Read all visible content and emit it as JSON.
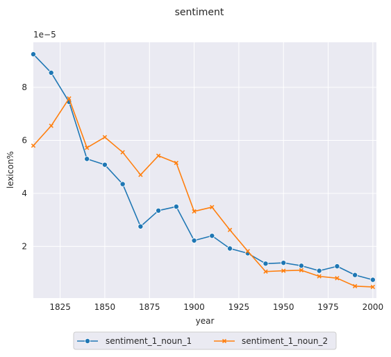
{
  "chart_data": {
    "type": "line",
    "title": "sentiment",
    "xlabel": "year",
    "ylabel": "lexicon%",
    "y_scale_label": "1e−5",
    "xlim": [
      1810,
      2002
    ],
    "ylim": [
      0.05,
      9.7
    ],
    "grid": true,
    "legend_position": "bottom-center",
    "x_ticks": [
      1825,
      1850,
      1875,
      1900,
      1925,
      1950,
      1975,
      2000
    ],
    "x_tick_labels": [
      "1825",
      "1850",
      "1875",
      "1900",
      "1925",
      "1950",
      "1975",
      "2000"
    ],
    "y_ticks": [
      2,
      4,
      6,
      8
    ],
    "y_tick_labels": [
      "2",
      "4",
      "6",
      "8"
    ],
    "x": [
      1810,
      1820,
      1830,
      1840,
      1850,
      1860,
      1870,
      1880,
      1890,
      1900,
      1910,
      1920,
      1930,
      1940,
      1950,
      1960,
      1970,
      1980,
      1990,
      2000
    ],
    "series": [
      {
        "name": "sentiment_1_noun_1",
        "color": "#1f77b4",
        "marker": "circle",
        "values": [
          9.25,
          8.55,
          7.45,
          5.3,
          5.08,
          4.35,
          2.75,
          3.35,
          3.5,
          2.22,
          2.4,
          1.92,
          1.74,
          1.35,
          1.38,
          1.27,
          1.08,
          1.25,
          0.92,
          0.74
        ]
      },
      {
        "name": "sentiment_1_noun_2",
        "color": "#ff7f0e",
        "marker": "x",
        "values": [
          5.8,
          6.55,
          7.58,
          5.72,
          6.12,
          5.55,
          4.7,
          5.42,
          5.15,
          3.32,
          3.48,
          2.62,
          1.82,
          1.05,
          1.08,
          1.1,
          0.87,
          0.8,
          0.5,
          0.47
        ]
      }
    ]
  }
}
